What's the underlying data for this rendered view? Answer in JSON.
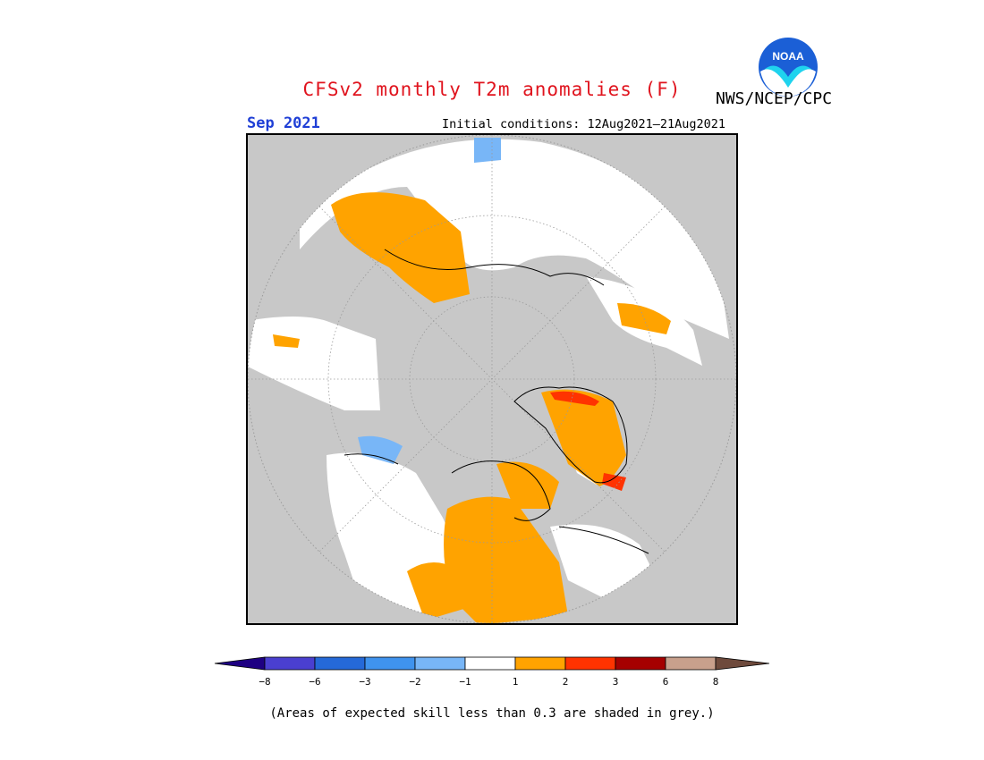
{
  "header": {
    "title": "CFSv2 monthly T2m anomalies (F)",
    "agency": "NWS/NCEP/CPC",
    "logo_text": "NOAA",
    "month": "Sep 2021",
    "initial_conditions": "Initial conditions: 12Aug2021–21Aug2021"
  },
  "map": {
    "projection": "north-polar-stereographic",
    "colors": {
      "skill_grey": "#c8c8c8",
      "neutral": "#ffffff",
      "pos_1_2": "#ffa300",
      "pos_2_3": "#ff3300",
      "pos_3_6": "#a50000",
      "neg_m2_m1": "#78b6f7",
      "coast": "#000000"
    }
  },
  "legend": {
    "ticks": [
      "−8",
      "−6",
      "−3",
      "−2",
      "−1",
      "1",
      "2",
      "3",
      "6",
      "8"
    ],
    "colors": [
      "#1e0082",
      "#4a3fd0",
      "#2569d8",
      "#3f93ee",
      "#78b6f7",
      "#ffffff",
      "#ffa300",
      "#ff3300",
      "#a50000",
      "#c8a08c",
      "#6e4a3c"
    ]
  },
  "footnote": "(Areas of expected skill less than 0.3 are shaded in grey.)"
}
